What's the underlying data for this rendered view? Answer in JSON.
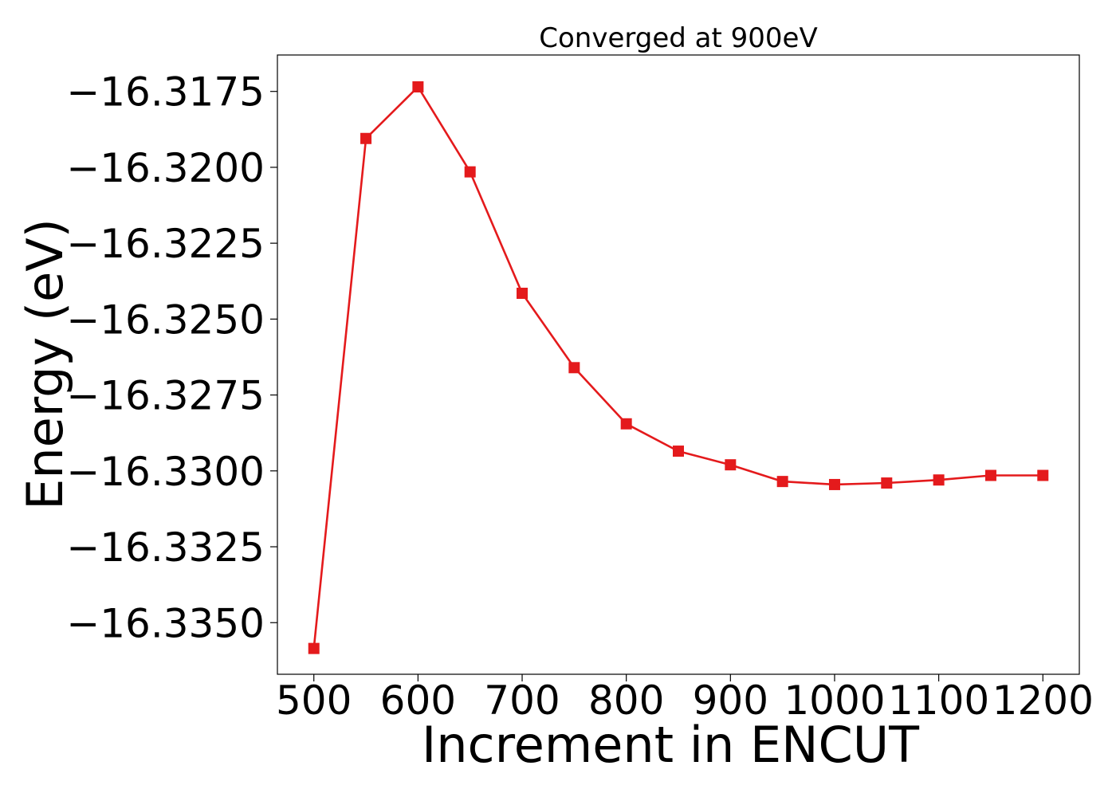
{
  "chart_data": {
    "type": "line",
    "title": "Converged at 900eV",
    "xlabel": "Increment in ENCUT",
    "ylabel": "Energy (eV)",
    "xlim": [
      465,
      1235
    ],
    "ylim": [
      -16.3367,
      -16.3163
    ],
    "xticks": [
      500,
      600,
      700,
      800,
      900,
      1000,
      1100,
      1200
    ],
    "xtick_labels": [
      "500",
      "600",
      "700",
      "800",
      "900",
      "1000",
      "1100",
      "1200"
    ],
    "yticks": [
      -16.3175,
      -16.32,
      -16.3225,
      -16.325,
      -16.3275,
      -16.33,
      -16.3325,
      -16.335
    ],
    "ytick_labels": [
      "−16.3175",
      "−16.3200",
      "−16.3225",
      "−16.3250",
      "−16.3275",
      "−16.3300",
      "−16.3325",
      "−16.3350"
    ],
    "grid": false,
    "series": [
      {
        "color": "#e41a1c",
        "marker": "square",
        "x": [
          500,
          550,
          600,
          650,
          700,
          750,
          800,
          850,
          900,
          950,
          1000,
          1050,
          1100,
          1150,
          1200
        ],
        "y": [
          -16.33585,
          -16.31905,
          -16.31735,
          -16.32015,
          -16.32415,
          -16.3266,
          -16.32845,
          -16.32935,
          -16.3298,
          -16.33035,
          -16.33045,
          -16.3304,
          -16.3303,
          -16.33015,
          -16.33015
        ]
      }
    ]
  }
}
